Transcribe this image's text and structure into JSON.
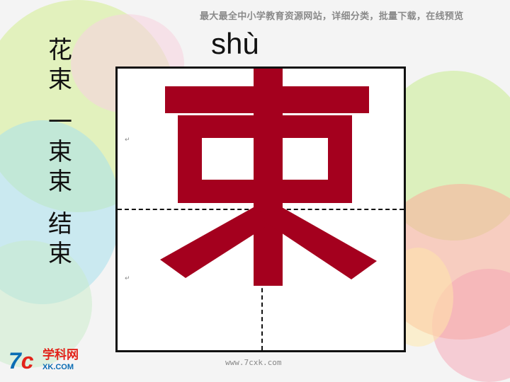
{
  "banner": "最大最全中小学教育资源网站，详细分类，批量下载，在线预览",
  "pinyin": "shù",
  "character": "束",
  "vocab": [
    {
      "chars": [
        "花",
        "束"
      ]
    },
    {
      "chars": [
        "一",
        "束",
        "束"
      ]
    },
    {
      "chars": [
        "结",
        "束"
      ]
    }
  ],
  "logo": {
    "mark_left": "7",
    "mark_right": "c",
    "name": "学科网",
    "domain": "XK.COM"
  },
  "footer_url": "www.7cxk.com",
  "marker_symbol": "↵",
  "colors": {
    "character": "#a4001e",
    "logo_blue": "#0b6db4",
    "logo_red": "#e2231a"
  }
}
